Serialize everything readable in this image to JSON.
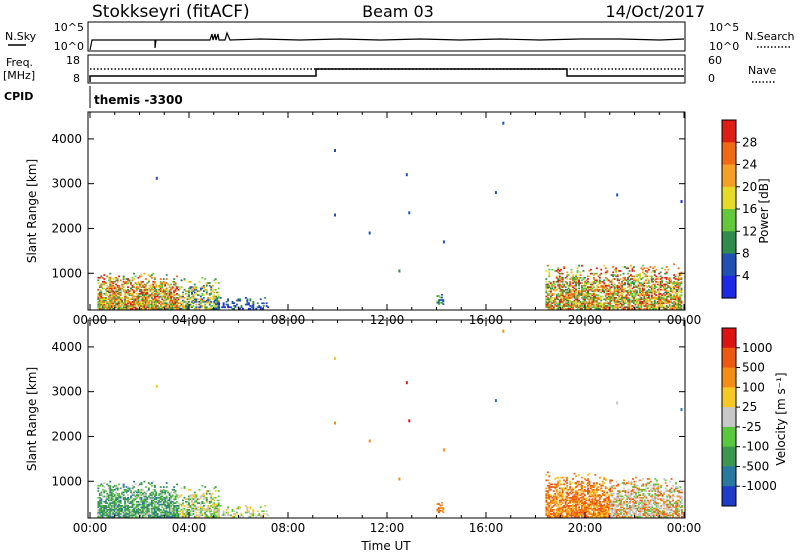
{
  "header": {
    "station": "Stokkseyri (fitACF)",
    "beam": "Beam 03",
    "date": "14/Oct/2017"
  },
  "summary": {
    "nsky_label": "N.Sky",
    "nsearch_label": "N.Search",
    "nsky_ticks": [
      "10^5",
      "10^0"
    ],
    "nsearch_ticks": [
      "10^5",
      "10^0"
    ],
    "freq_label_1": "Freq.",
    "freq_label_2": "[MHz]",
    "freq_ticks": [
      "18",
      "8"
    ],
    "nave_label": "Nave",
    "nave_ticks": [
      "60",
      "0"
    ],
    "cpid_label": "CPID",
    "cpid_value": "themis -3300"
  },
  "chart_data": [
    {
      "type": "heatmap",
      "name": "power",
      "ylabel": "Slant Range [km]",
      "xlabel": "",
      "x_ticks": [
        "00:00",
        "04:00",
        "08:00",
        "12:00",
        "16:00",
        "20:00",
        "00:00"
      ],
      "x_range_hours": [
        0,
        24
      ],
      "y_ticks": [
        1000,
        2000,
        3000,
        4000
      ],
      "ylim": [
        180,
        4600
      ],
      "colorbar": {
        "label": "Power [dB]",
        "ticks": [
          "4",
          "8",
          "12",
          "16",
          "20",
          "24",
          "28"
        ],
        "colors": [
          "#1f28e6",
          "#2050b4",
          "#2e8c4c",
          "#63c83c",
          "#e6dc28",
          "#f5a023",
          "#f06a14",
          "#dc1e14"
        ]
      },
      "clusters": [
        {
          "t0": 0.3,
          "t1": 3.6,
          "r0": 200,
          "r1": 1000,
          "density": 0.85,
          "classes": [
            4,
            5,
            6,
            7,
            3,
            2
          ]
        },
        {
          "t0": 3.6,
          "t1": 5.2,
          "r0": 200,
          "r1": 900,
          "density": 0.55,
          "classes": [
            1,
            2,
            3,
            4,
            5
          ]
        },
        {
          "t0": 5.0,
          "t1": 7.2,
          "r0": 200,
          "r1": 500,
          "density": 0.35,
          "classes": [
            0,
            1,
            2
          ]
        },
        {
          "t0": 14.0,
          "t1": 14.3,
          "r0": 300,
          "r1": 600,
          "density": 0.5,
          "classes": [
            1,
            2,
            3
          ]
        },
        {
          "t0": 18.4,
          "t1": 23.9,
          "r0": 200,
          "r1": 1200,
          "density": 0.75,
          "classes": [
            2,
            3,
            4,
            5,
            6,
            7
          ]
        }
      ],
      "scatter_points": [
        {
          "t": 9.9,
          "r": 3740,
          "c": 1
        },
        {
          "t": 12.8,
          "r": 3200,
          "c": 1
        },
        {
          "t": 16.7,
          "r": 4350,
          "c": 1
        },
        {
          "t": 16.4,
          "r": 2800,
          "c": 1
        },
        {
          "t": 9.9,
          "r": 2300,
          "c": 1
        },
        {
          "t": 12.9,
          "r": 2350,
          "c": 1
        },
        {
          "t": 2.7,
          "r": 3120,
          "c": 1
        },
        {
          "t": 21.3,
          "r": 2750,
          "c": 1
        },
        {
          "t": 23.9,
          "r": 2600,
          "c": 0
        },
        {
          "t": 14.3,
          "r": 1700,
          "c": 1
        },
        {
          "t": 11.3,
          "r": 1900,
          "c": 1
        },
        {
          "t": 12.5,
          "r": 1050,
          "c": 2
        }
      ]
    },
    {
      "type": "heatmap",
      "name": "velocity",
      "ylabel": "Slant Range [km]",
      "xlabel": "Time UT",
      "x_ticks": [
        "00:00",
        "04:00",
        "08:00",
        "12:00",
        "16:00",
        "20:00",
        "00:00"
      ],
      "x_range_hours": [
        0,
        24
      ],
      "y_ticks": [
        1000,
        2000,
        3000,
        4000
      ],
      "ylim": [
        180,
        4600
      ],
      "colorbar": {
        "label": "Velocity [m s⁻¹]",
        "ticks": [
          "1000",
          "500",
          "100",
          "25",
          "-25",
          "-100",
          "-500",
          "-1000"
        ],
        "colors": [
          "#1f3cc8",
          "#2878a0",
          "#3c9650",
          "#5ac83c",
          "#c8c8c8",
          "#f5c823",
          "#f58c14",
          "#eb5a0f",
          "#dc1414"
        ]
      },
      "clusters": [
        {
          "t0": 0.3,
          "t1": 3.6,
          "r0": 200,
          "r1": 1000,
          "density": 0.85,
          "classes": [
            2,
            2,
            3,
            4,
            1
          ]
        },
        {
          "t0": 3.6,
          "t1": 5.2,
          "r0": 200,
          "r1": 900,
          "density": 0.55,
          "classes": [
            4,
            2,
            3,
            5
          ]
        },
        {
          "t0": 5.0,
          "t1": 7.2,
          "r0": 200,
          "r1": 500,
          "density": 0.35,
          "classes": [
            4,
            3,
            5
          ]
        },
        {
          "t0": 14.0,
          "t1": 14.3,
          "r0": 300,
          "r1": 600,
          "density": 0.5,
          "classes": [
            6,
            7
          ]
        },
        {
          "t0": 18.4,
          "t1": 21.0,
          "r0": 200,
          "r1": 1200,
          "density": 0.8,
          "classes": [
            6,
            7,
            7,
            5
          ]
        },
        {
          "t0": 21.0,
          "t1": 23.9,
          "r0": 200,
          "r1": 1100,
          "density": 0.7,
          "classes": [
            4,
            4,
            6,
            3,
            7
          ]
        }
      ],
      "scatter_points": [
        {
          "t": 9.9,
          "r": 3740,
          "c": 5
        },
        {
          "t": 12.8,
          "r": 3200,
          "c": 8
        },
        {
          "t": 16.7,
          "r": 4350,
          "c": 6
        },
        {
          "t": 16.4,
          "r": 2800,
          "c": 1
        },
        {
          "t": 9.9,
          "r": 2300,
          "c": 6
        },
        {
          "t": 12.9,
          "r": 2350,
          "c": 8
        },
        {
          "t": 2.7,
          "r": 3120,
          "c": 5
        },
        {
          "t": 21.3,
          "r": 2750,
          "c": 4
        },
        {
          "t": 23.9,
          "r": 2600,
          "c": 1
        },
        {
          "t": 14.3,
          "r": 1700,
          "c": 6
        },
        {
          "t": 11.3,
          "r": 1900,
          "c": 6
        },
        {
          "t": 12.5,
          "r": 1050,
          "c": 6
        }
      ]
    }
  ]
}
